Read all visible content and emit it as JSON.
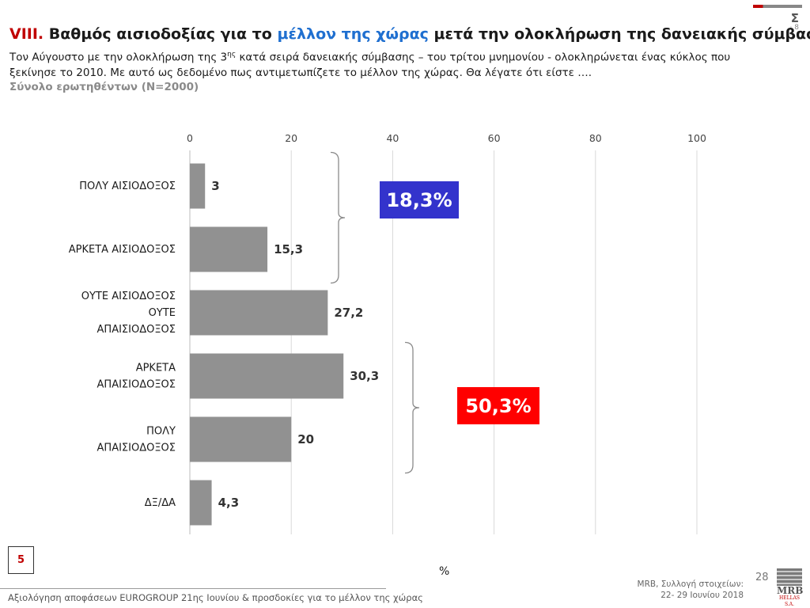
{
  "header": {
    "title_number": "VIII.",
    "title_part1": "Βαθμός αισιοδοξίας για το",
    "title_highlight": "μέλλον της χώρας",
    "title_part2": "μετά την ολοκλήρωση της δανειακής σύμβασης",
    "subtitle_line1_a": "Τον Αύγουστο με την ολοκλήρωση της 3",
    "subtitle_sup": "ης",
    "subtitle_line1_b": " κατά σειρά δανειακής σύμβασης – του τρίτου μνημονίου - ολοκληρώνεται ένας κύκλος που",
    "subtitle_line2": "ξεκίνησε το 2010. Με αυτό ως δεδομένο πως αντιμετωπίζετε το μέλλον της χώρας. Θα λέγατε ότι είστε ….",
    "base": "Σύνολο ερωτηθέντων (Ν=2000)",
    "brand_letter": "Σ",
    "brand_mark": "· 8"
  },
  "chart_data": {
    "type": "bar",
    "orientation": "horizontal",
    "categories": [
      [
        "ΠΟΛΥ ΑΙΣΙΟΔΟΞΟΣ"
      ],
      [
        "ΑΡΚΕΤΑ ΑΙΣΙΟΔΟΞΟΣ"
      ],
      [
        "ΟΥΤΕ ΑΙΣΙΟΔΟΞΟΣ",
        "ΟΥΤΕ",
        "ΑΠΑΙΣΙΟΔΟΞΟΣ"
      ],
      [
        "ΑΡΚΕΤΑ",
        "ΑΠΑΙΣΙΟΔΟΞΟΣ"
      ],
      [
        "ΠΟΛΥ",
        "ΑΠΑΙΣΙΟΔΟΞΟΣ"
      ],
      [
        "ΔΞ/ΔΑ"
      ]
    ],
    "values": [
      3,
      15.3,
      27.2,
      30.3,
      20,
      4.3
    ],
    "value_labels": [
      "3",
      "15,3",
      "27,2",
      "30,3",
      "20",
      "4,3"
    ],
    "xlim": [
      0,
      100
    ],
    "xticks": [
      0,
      20,
      40,
      60,
      80,
      100
    ],
    "xlabel": "%",
    "bar_color": "#919191",
    "grid": true,
    "tick_position": "top",
    "groups": [
      {
        "label": "18,3%",
        "rows": [
          0,
          1
        ],
        "color": "#3333cc"
      },
      {
        "label": "50,3%",
        "rows": [
          3,
          4
        ],
        "color": "#ff0000"
      }
    ]
  },
  "footer": {
    "page_box": "5",
    "text": "Αξιολόγηση αποφάσεων EUROGROUP 21ης Ιουνίου & προσδοκίες για το μέλλον της χώρας",
    "page_number": "28",
    "source_line1": "MRB, Συλλογή στοιχείων:",
    "source_line2": "22- 29 Ιουνίου 2018",
    "logo_text": "MRB",
    "logo_sub": "HELLAS S.A."
  }
}
